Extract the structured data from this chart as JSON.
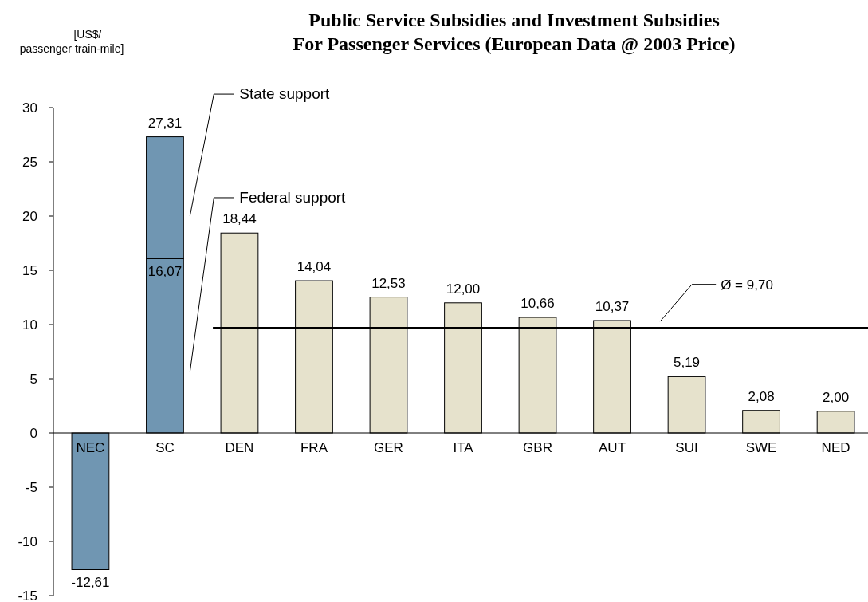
{
  "chart_data": {
    "type": "bar",
    "title": "Public Service Subsidies and Investment Subsidies\nFor Passenger Services (European Data @ 2003 Price)",
    "ylabel": "[US$/\npassenger train-mile]",
    "categories": [
      "NEC",
      "SC",
      "DEN",
      "FRA",
      "GER",
      "ITA",
      "GBR",
      "AUT",
      "SUI",
      "SWE",
      "NED"
    ],
    "stacked": true,
    "series": [
      {
        "color": "#7096b2",
        "values": [
          -12.61,
          null,
          null,
          null,
          null,
          null,
          null,
          null,
          null,
          null,
          null
        ],
        "value_labels": [
          "-12,61",
          null,
          null,
          null,
          null,
          null,
          null,
          null,
          null,
          null,
          null
        ]
      },
      {
        "name": "Federal support",
        "color": "#7096b2",
        "values": [
          null,
          16.07,
          null,
          null,
          null,
          null,
          null,
          null,
          null,
          null,
          null
        ],
        "value_labels": [
          null,
          "16,07",
          null,
          null,
          null,
          null,
          null,
          null,
          null,
          null,
          null
        ]
      },
      {
        "name": "State support",
        "color": "#7096b2",
        "values": [
          null,
          11.24,
          null,
          null,
          null,
          null,
          null,
          null,
          null,
          null,
          null
        ]
      },
      {
        "color": "#e6e2cc",
        "values": [
          null,
          null,
          18.44,
          14.04,
          12.53,
          12.0,
          10.66,
          10.37,
          5.19,
          2.08,
          2.0
        ],
        "value_labels": [
          null,
          null,
          "18,44",
          "14,04",
          "12,53",
          "12,00",
          "10,66",
          "10,37",
          "5,19",
          "2,08",
          "2,00"
        ]
      }
    ],
    "totals": [
      null,
      "27,31",
      null,
      null,
      null,
      null,
      null,
      null,
      null,
      null,
      null
    ],
    "ref_lines": [
      {
        "axis": "y",
        "value": 9.7,
        "label": "Ø = 9,70",
        "color": "#000000"
      }
    ],
    "ylim": [
      -15,
      30
    ],
    "yticks": [
      -15,
      -10,
      -5,
      0,
      5,
      10,
      15,
      20,
      25,
      30
    ],
    "grid": false
  }
}
